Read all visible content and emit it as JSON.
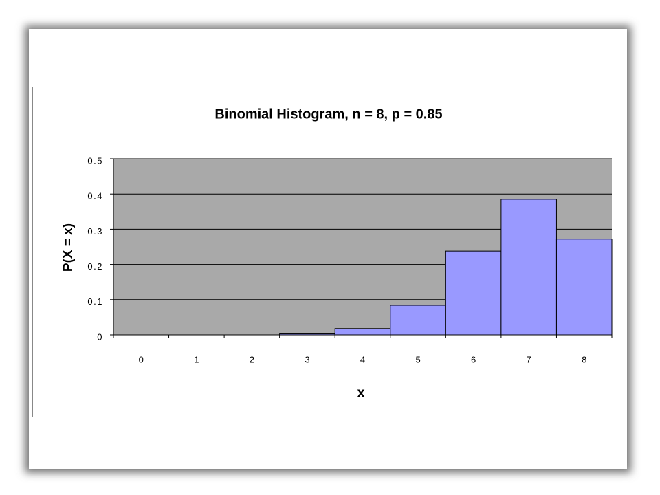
{
  "chart_data": {
    "type": "bar",
    "title": "Binomial Histogram, n = 8, p = 0.85",
    "x_label": "x",
    "y_label": "P(X = x)",
    "categories": [
      "0",
      "1",
      "2",
      "3",
      "4",
      "5",
      "6",
      "7",
      "8"
    ],
    "values": [
      0,
      0,
      0,
      0.003,
      0.018,
      0.084,
      0.238,
      0.385,
      0.272
    ],
    "color": "#9999ff",
    "ylim": [
      0,
      0.5
    ],
    "yticks": [
      0,
      0.1,
      0.2,
      0.3,
      0.4,
      0.5
    ],
    "grid": true
  }
}
